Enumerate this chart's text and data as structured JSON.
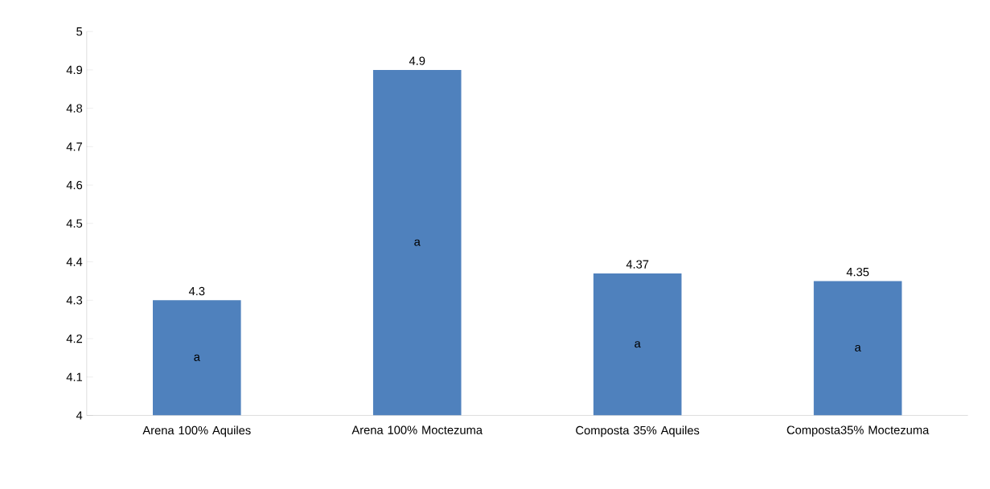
{
  "chart_data": {
    "type": "bar",
    "categories": [
      "Arena 100% Aquiles",
      "Arena 100% Moctezuma",
      "Composta 35% Aquiles",
      "Composta35% Moctezuma"
    ],
    "values": [
      4.3,
      4.9,
      4.37,
      4.35
    ],
    "color": "#4f81bd",
    "ylim": [
      4,
      5
    ],
    "yticks": [
      4,
      4.1,
      4.2,
      4.3,
      4.4,
      4.5,
      4.6,
      4.7,
      4.8,
      4.9,
      5
    ],
    "data_labels": true,
    "grid": false,
    "annotations": [
      "a",
      "a",
      "a",
      "a"
    ]
  }
}
